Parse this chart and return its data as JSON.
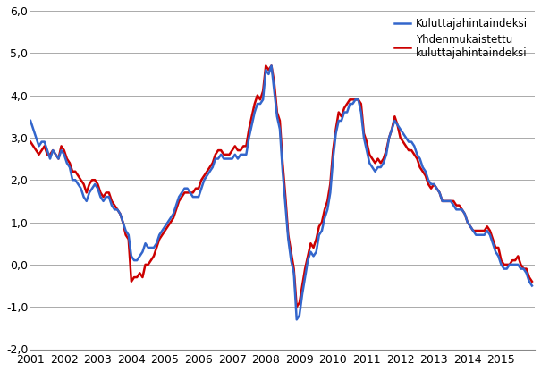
{
  "ylim": [
    -2.0,
    6.0
  ],
  "yticks": [
    -2.0,
    -1.0,
    0.0,
    1.0,
    2.0,
    3.0,
    4.0,
    5.0,
    6.0
  ],
  "ytick_labels": [
    "-2,0",
    "-1,0",
    "0,0",
    "1,0",
    "2,0",
    "3,0",
    "4,0",
    "5,0",
    "6,0"
  ],
  "legend_labels": [
    "Kuluttajahintaindeksi",
    "Yhdenmukaistettu\nkuluttajahintaindeksi"
  ],
  "color_khi": "#3366CC",
  "color_yhkhi": "#CC0000",
  "line_width": 1.8,
  "start_year": 2001,
  "end_year": 2015,
  "khi": [
    3.4,
    3.2,
    3.0,
    2.8,
    2.9,
    2.9,
    2.7,
    2.5,
    2.7,
    2.6,
    2.5,
    2.7,
    2.6,
    2.4,
    2.3,
    2.0,
    2.0,
    1.9,
    1.8,
    1.6,
    1.5,
    1.7,
    1.8,
    1.9,
    1.8,
    1.6,
    1.5,
    1.6,
    1.6,
    1.4,
    1.3,
    1.3,
    1.2,
    1.0,
    0.8,
    0.7,
    0.2,
    0.1,
    0.1,
    0.2,
    0.3,
    0.5,
    0.4,
    0.4,
    0.4,
    0.5,
    0.7,
    0.8,
    0.9,
    1.0,
    1.1,
    1.2,
    1.4,
    1.6,
    1.7,
    1.8,
    1.8,
    1.7,
    1.6,
    1.6,
    1.6,
    1.8,
    2.0,
    2.1,
    2.2,
    2.3,
    2.5,
    2.5,
    2.6,
    2.5,
    2.5,
    2.5,
    2.5,
    2.6,
    2.5,
    2.6,
    2.6,
    2.6,
    3.0,
    3.3,
    3.6,
    3.8,
    3.8,
    3.9,
    4.6,
    4.5,
    4.7,
    4.1,
    3.5,
    3.2,
    2.2,
    1.4,
    0.6,
    0.1,
    -0.2,
    -1.3,
    -1.2,
    -0.7,
    -0.3,
    0.1,
    0.3,
    0.2,
    0.3,
    0.7,
    0.8,
    1.1,
    1.3,
    1.7,
    2.5,
    3.1,
    3.4,
    3.4,
    3.6,
    3.6,
    3.8,
    3.8,
    3.9,
    3.9,
    3.6,
    3.0,
    2.7,
    2.4,
    2.3,
    2.2,
    2.3,
    2.3,
    2.4,
    2.6,
    3.0,
    3.2,
    3.4,
    3.3,
    3.2,
    3.1,
    3.0,
    2.9,
    2.9,
    2.8,
    2.6,
    2.5,
    2.3,
    2.2,
    2.0,
    1.9,
    1.9,
    1.8,
    1.7,
    1.5,
    1.5,
    1.5,
    1.5,
    1.4,
    1.3,
    1.3,
    1.3,
    1.2,
    1.0,
    0.9,
    0.8,
    0.7,
    0.7,
    0.7,
    0.7,
    0.8,
    0.7,
    0.5,
    0.3,
    0.2,
    0.0,
    -0.1,
    -0.1,
    0.0,
    0.0,
    0.0,
    0.0,
    -0.1,
    -0.1,
    -0.2,
    -0.4,
    -0.5
  ],
  "yhkhi": [
    2.9,
    2.8,
    2.7,
    2.6,
    2.7,
    2.8,
    2.6,
    2.6,
    2.7,
    2.6,
    2.5,
    2.8,
    2.7,
    2.5,
    2.4,
    2.2,
    2.2,
    2.1,
    2.0,
    1.9,
    1.7,
    1.9,
    2.0,
    2.0,
    1.9,
    1.7,
    1.6,
    1.7,
    1.7,
    1.5,
    1.4,
    1.3,
    1.2,
    1.0,
    0.7,
    0.6,
    -0.4,
    -0.3,
    -0.3,
    -0.2,
    -0.3,
    0.0,
    0.0,
    0.1,
    0.2,
    0.4,
    0.6,
    0.7,
    0.8,
    0.9,
    1.0,
    1.1,
    1.3,
    1.5,
    1.6,
    1.7,
    1.7,
    1.7,
    1.7,
    1.8,
    1.8,
    2.0,
    2.1,
    2.2,
    2.3,
    2.4,
    2.6,
    2.7,
    2.7,
    2.6,
    2.6,
    2.6,
    2.7,
    2.8,
    2.7,
    2.7,
    2.8,
    2.8,
    3.2,
    3.5,
    3.8,
    4.0,
    3.9,
    4.1,
    4.7,
    4.6,
    4.7,
    4.3,
    3.6,
    3.4,
    2.4,
    1.6,
    0.7,
    0.3,
    -0.1,
    -1.0,
    -0.9,
    -0.5,
    -0.1,
    0.2,
    0.5,
    0.4,
    0.6,
    0.9,
    1.0,
    1.3,
    1.5,
    1.9,
    2.7,
    3.2,
    3.6,
    3.5,
    3.7,
    3.8,
    3.9,
    3.9,
    3.9,
    3.9,
    3.8,
    3.1,
    2.9,
    2.6,
    2.5,
    2.4,
    2.5,
    2.4,
    2.5,
    2.7,
    3.0,
    3.2,
    3.5,
    3.3,
    3.0,
    2.9,
    2.8,
    2.7,
    2.7,
    2.6,
    2.5,
    2.3,
    2.2,
    2.1,
    1.9,
    1.8,
    1.9,
    1.8,
    1.7,
    1.5,
    1.5,
    1.5,
    1.5,
    1.5,
    1.4,
    1.4,
    1.3,
    1.2,
    1.0,
    0.9,
    0.8,
    0.8,
    0.8,
    0.8,
    0.8,
    0.9,
    0.8,
    0.6,
    0.4,
    0.4,
    0.1,
    0.0,
    0.0,
    0.0,
    0.1,
    0.1,
    0.2,
    0.0,
    -0.1,
    -0.1,
    -0.3,
    -0.4
  ]
}
